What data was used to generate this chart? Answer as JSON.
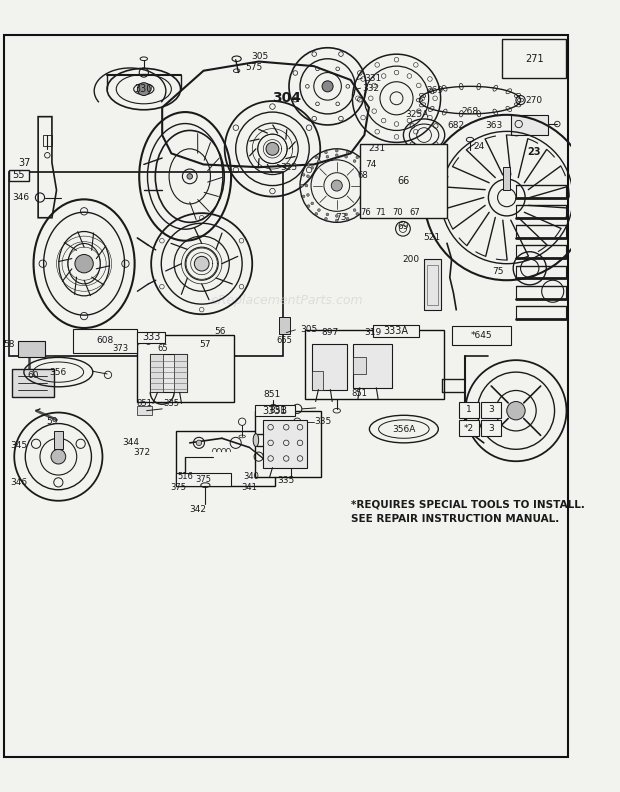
{
  "bg_color": "#f2f2ee",
  "line_color": "#1a1a1a",
  "note_line1": "*REQUIRES SPECIAL TOOLS TO INSTALL.",
  "note_line2": "SEE REPAIR INSTRUCTION MANUAL.",
  "watermark": "eReplacementParts.com",
  "fig_w": 6.2,
  "fig_h": 7.92,
  "dpi": 100
}
